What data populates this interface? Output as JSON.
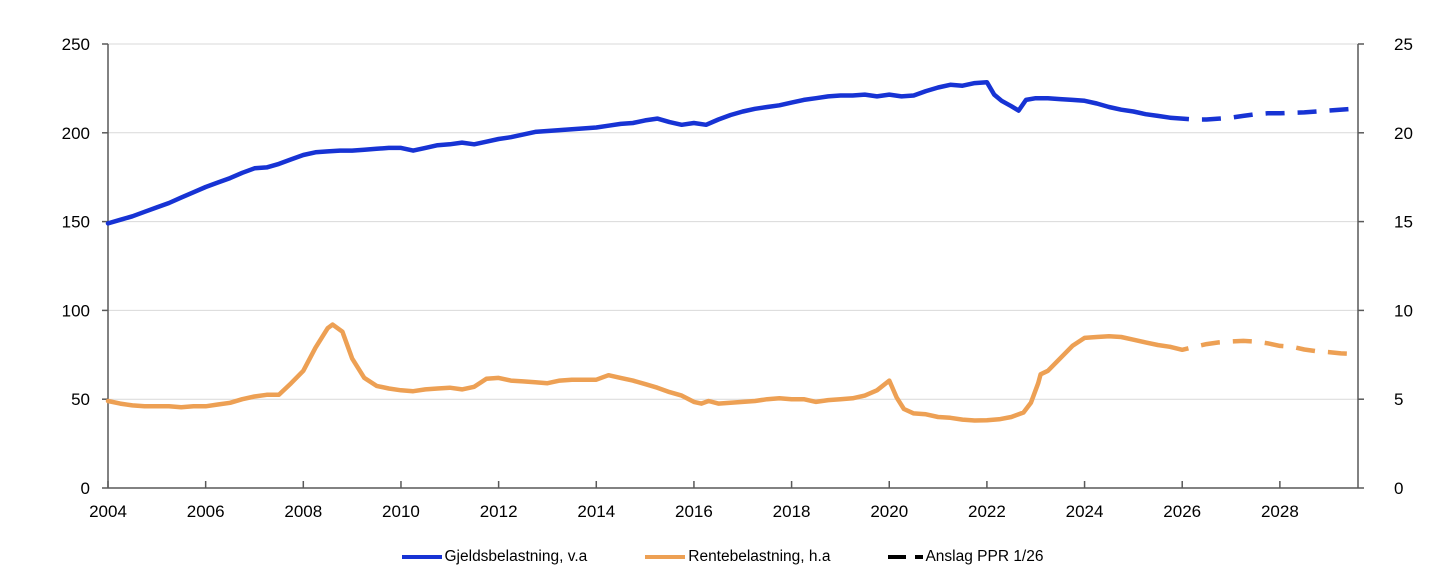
{
  "chart_data": {
    "type": "line",
    "title": "",
    "grid": true,
    "legend_position": "bottom",
    "x_axis": {
      "min": 2004,
      "max": 2029.6,
      "ticks": [
        2004,
        2006,
        2008,
        2010,
        2012,
        2014,
        2016,
        2018,
        2020,
        2022,
        2024,
        2026,
        2028
      ],
      "tick_labels": [
        "2004",
        "2006",
        "2008",
        "2010",
        "2012",
        "2014",
        "2016",
        "2018",
        "2020",
        "2022",
        "2024",
        "2026",
        "2028"
      ]
    },
    "y_axis_left": {
      "min": 0,
      "max": 250,
      "ticks": [
        0,
        50,
        100,
        150,
        200,
        250
      ],
      "tick_labels": [
        "0",
        "50",
        "100",
        "150",
        "200",
        "250"
      ]
    },
    "y_axis_right": {
      "min": 0,
      "max": 25,
      "ticks": [
        0,
        5,
        10,
        15,
        20,
        25
      ],
      "tick_labels": [
        "0",
        "5",
        "10",
        "15",
        "20",
        "25"
      ]
    },
    "colors": {
      "blue": "#1733D4",
      "orange": "#EDA054",
      "grid": "#D9D9D9",
      "axis": "#595959",
      "forecast_legend": "#000000",
      "text": "#000000"
    },
    "series": [
      {
        "name": "Gjeldsbelastning, v.a",
        "axis": "left",
        "style": "solid",
        "color": "#1733D4",
        "points": [
          [
            2004,
            149
          ],
          [
            2004.25,
            151
          ],
          [
            2004.5,
            153
          ],
          [
            2004.75,
            155.5
          ],
          [
            2005,
            158
          ],
          [
            2005.25,
            160.5
          ],
          [
            2005.5,
            163.5
          ],
          [
            2005.75,
            166.5
          ],
          [
            2006,
            169.5
          ],
          [
            2006.25,
            172
          ],
          [
            2006.5,
            174.5
          ],
          [
            2006.75,
            177.5
          ],
          [
            2007,
            180
          ],
          [
            2007.25,
            180.5
          ],
          [
            2007.5,
            182.5
          ],
          [
            2007.75,
            185
          ],
          [
            2008,
            187.5
          ],
          [
            2008.25,
            189
          ],
          [
            2008.5,
            189.5
          ],
          [
            2008.75,
            190
          ],
          [
            2009,
            190
          ],
          [
            2009.25,
            190.5
          ],
          [
            2009.5,
            191
          ],
          [
            2009.75,
            191.5
          ],
          [
            2010,
            191.5
          ],
          [
            2010.25,
            190
          ],
          [
            2010.5,
            191.5
          ],
          [
            2010.75,
            193
          ],
          [
            2011,
            193.5
          ],
          [
            2011.25,
            194.5
          ],
          [
            2011.5,
            193.5
          ],
          [
            2011.75,
            195
          ],
          [
            2012,
            196.5
          ],
          [
            2012.25,
            197.5
          ],
          [
            2012.5,
            199
          ],
          [
            2012.75,
            200.5
          ],
          [
            2013,
            201
          ],
          [
            2013.25,
            201.5
          ],
          [
            2013.5,
            202
          ],
          [
            2013.75,
            202.5
          ],
          [
            2014,
            203
          ],
          [
            2014.25,
            204
          ],
          [
            2014.5,
            205
          ],
          [
            2014.75,
            205.5
          ],
          [
            2015,
            207
          ],
          [
            2015.25,
            208
          ],
          [
            2015.5,
            206
          ],
          [
            2015.75,
            204.5
          ],
          [
            2016,
            205.5
          ],
          [
            2016.25,
            204.5
          ],
          [
            2016.5,
            207.5
          ],
          [
            2016.75,
            210
          ],
          [
            2017,
            212
          ],
          [
            2017.25,
            213.5
          ],
          [
            2017.5,
            214.5
          ],
          [
            2017.75,
            215.5
          ],
          [
            2018,
            217
          ],
          [
            2018.25,
            218.5
          ],
          [
            2018.5,
            219.5
          ],
          [
            2018.75,
            220.5
          ],
          [
            2019,
            221
          ],
          [
            2019.25,
            221
          ],
          [
            2019.5,
            221.5
          ],
          [
            2019.75,
            220.5
          ],
          [
            2020,
            221.5
          ],
          [
            2020.25,
            220.5
          ],
          [
            2020.5,
            221
          ],
          [
            2020.75,
            223.5
          ],
          [
            2021,
            225.5
          ],
          [
            2021.25,
            227
          ],
          [
            2021.5,
            226.5
          ],
          [
            2021.75,
            228
          ],
          [
            2022,
            228.5
          ],
          [
            2022.15,
            221.5
          ],
          [
            2022.3,
            218
          ],
          [
            2022.5,
            215
          ],
          [
            2022.65,
            212.5
          ],
          [
            2022.8,
            218.5
          ],
          [
            2023,
            219.5
          ],
          [
            2023.25,
            219.5
          ],
          [
            2023.5,
            219
          ],
          [
            2023.75,
            218.5
          ],
          [
            2024,
            218
          ],
          [
            2024.25,
            216.5
          ],
          [
            2024.5,
            214.5
          ],
          [
            2024.75,
            213
          ],
          [
            2025,
            212
          ],
          [
            2025.25,
            210.5
          ],
          [
            2025.5,
            209.5
          ],
          [
            2025.75,
            208.5
          ]
        ]
      },
      {
        "name": "Gjeldsbelastning anslag",
        "axis": "left",
        "style": "dashed",
        "color": "#1733D4",
        "points": [
          [
            2025.75,
            208.5
          ],
          [
            2026,
            208
          ],
          [
            2026.25,
            207.5
          ],
          [
            2026.5,
            207.5
          ],
          [
            2026.75,
            208
          ],
          [
            2027,
            208.5
          ],
          [
            2027.25,
            209.5
          ],
          [
            2027.5,
            210.5
          ],
          [
            2027.75,
            211
          ],
          [
            2028,
            211
          ],
          [
            2028.5,
            211.5
          ],
          [
            2029,
            212.5
          ],
          [
            2029.5,
            213.5
          ]
        ]
      },
      {
        "name": "Rentebelastning, h.a",
        "axis": "right",
        "style": "solid",
        "color": "#EDA054",
        "points": [
          [
            2004,
            4.9
          ],
          [
            2004.25,
            4.75
          ],
          [
            2004.5,
            4.65
          ],
          [
            2004.75,
            4.6
          ],
          [
            2005,
            4.6
          ],
          [
            2005.25,
            4.6
          ],
          [
            2005.5,
            4.55
          ],
          [
            2005.75,
            4.6
          ],
          [
            2006,
            4.6
          ],
          [
            2006.25,
            4.7
          ],
          [
            2006.5,
            4.8
          ],
          [
            2006.75,
            5.0
          ],
          [
            2007,
            5.15
          ],
          [
            2007.25,
            5.25
          ],
          [
            2007.5,
            5.25
          ],
          [
            2007.75,
            5.9
          ],
          [
            2008,
            6.6
          ],
          [
            2008.25,
            7.9
          ],
          [
            2008.5,
            9.0
          ],
          [
            2008.6,
            9.2
          ],
          [
            2008.8,
            8.8
          ],
          [
            2009,
            7.3
          ],
          [
            2009.25,
            6.2
          ],
          [
            2009.5,
            5.75
          ],
          [
            2009.75,
            5.6
          ],
          [
            2010,
            5.5
          ],
          [
            2010.25,
            5.45
          ],
          [
            2010.5,
            5.55
          ],
          [
            2010.75,
            5.6
          ],
          [
            2011,
            5.65
          ],
          [
            2011.25,
            5.55
          ],
          [
            2011.5,
            5.7
          ],
          [
            2011.75,
            6.15
          ],
          [
            2012,
            6.2
          ],
          [
            2012.25,
            6.05
          ],
          [
            2012.5,
            6.0
          ],
          [
            2012.75,
            5.95
          ],
          [
            2013,
            5.9
          ],
          [
            2013.25,
            6.05
          ],
          [
            2013.5,
            6.1
          ],
          [
            2013.75,
            6.1
          ],
          [
            2014,
            6.1
          ],
          [
            2014.25,
            6.35
          ],
          [
            2014.5,
            6.2
          ],
          [
            2014.75,
            6.05
          ],
          [
            2015,
            5.85
          ],
          [
            2015.25,
            5.65
          ],
          [
            2015.5,
            5.4
          ],
          [
            2015.75,
            5.2
          ],
          [
            2016,
            4.85
          ],
          [
            2016.15,
            4.75
          ],
          [
            2016.3,
            4.9
          ],
          [
            2016.5,
            4.75
          ],
          [
            2016.75,
            4.8
          ],
          [
            2017,
            4.85
          ],
          [
            2017.25,
            4.9
          ],
          [
            2017.5,
            5.0
          ],
          [
            2017.75,
            5.05
          ],
          [
            2018,
            5.0
          ],
          [
            2018.25,
            5.0
          ],
          [
            2018.5,
            4.85
          ],
          [
            2018.75,
            4.95
          ],
          [
            2019,
            5.0
          ],
          [
            2019.25,
            5.05
          ],
          [
            2019.5,
            5.2
          ],
          [
            2019.75,
            5.5
          ],
          [
            2020,
            6.05
          ],
          [
            2020.15,
            5.1
          ],
          [
            2020.3,
            4.45
          ],
          [
            2020.5,
            4.2
          ],
          [
            2020.75,
            4.15
          ],
          [
            2021,
            4.0
          ],
          [
            2021.25,
            3.95
          ],
          [
            2021.5,
            3.85
          ],
          [
            2021.75,
            3.8
          ],
          [
            2022,
            3.82
          ],
          [
            2022.25,
            3.87
          ],
          [
            2022.5,
            4.0
          ],
          [
            2022.75,
            4.25
          ],
          [
            2022.9,
            4.8
          ],
          [
            2023.05,
            5.9
          ],
          [
            2023.1,
            6.4
          ],
          [
            2023.25,
            6.6
          ],
          [
            2023.5,
            7.3
          ],
          [
            2023.75,
            8.0
          ],
          [
            2024,
            8.45
          ],
          [
            2024.25,
            8.5
          ],
          [
            2024.5,
            8.55
          ],
          [
            2024.75,
            8.5
          ],
          [
            2025,
            8.35
          ],
          [
            2025.25,
            8.2
          ],
          [
            2025.5,
            8.05
          ],
          [
            2025.75,
            7.95
          ]
        ]
      },
      {
        "name": "Rentebelastning anslag",
        "axis": "right",
        "style": "dashed",
        "color": "#EDA054",
        "points": [
          [
            2025.75,
            7.95
          ],
          [
            2026,
            7.78
          ],
          [
            2026.25,
            7.95
          ],
          [
            2026.5,
            8.1
          ],
          [
            2026.75,
            8.2
          ],
          [
            2027,
            8.25
          ],
          [
            2027.25,
            8.28
          ],
          [
            2027.5,
            8.25
          ],
          [
            2027.75,
            8.15
          ],
          [
            2028,
            8.0
          ],
          [
            2028.25,
            7.95
          ],
          [
            2028.5,
            7.8
          ],
          [
            2028.75,
            7.7
          ],
          [
            2029,
            7.65
          ],
          [
            2029.25,
            7.58
          ],
          [
            2029.5,
            7.55
          ]
        ]
      }
    ],
    "legend": [
      {
        "label": "Gjeldsbelastning, v.a",
        "color": "#1733D4",
        "style": "solid"
      },
      {
        "label": "Rentebelastning, h.a",
        "color": "#EDA054",
        "style": "solid"
      },
      {
        "label": "Anslag PPR 1/26",
        "color": "#000000",
        "style": "dashed"
      }
    ]
  }
}
